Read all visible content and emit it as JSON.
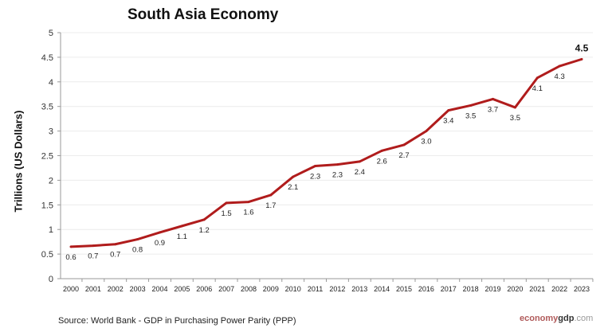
{
  "chart_data": {
    "type": "line",
    "title": "South Asia Economy",
    "xlabel": "",
    "ylabel": "Trillions (US Dollars)",
    "ylim": [
      0,
      5
    ],
    "yticks": [
      "0",
      "0.5",
      "1",
      "1.5",
      "2",
      "2.5",
      "3",
      "3.5",
      "4",
      "4.5",
      "5"
    ],
    "grid": true,
    "line_color": "#b01c1c",
    "x": [
      "2000",
      "2001",
      "2002",
      "2003",
      "2004",
      "2005",
      "2006",
      "2007",
      "2008",
      "2009",
      "2010",
      "2011",
      "2012",
      "2013",
      "2014",
      "2015",
      "2016",
      "2017",
      "2018",
      "2019",
      "2020",
      "2021",
      "2022",
      "2023"
    ],
    "series": [
      {
        "values": [
          0.65,
          0.67,
          0.7,
          0.8,
          0.94,
          1.07,
          1.2,
          1.54,
          1.56,
          1.7,
          2.07,
          2.29,
          2.32,
          2.38,
          2.6,
          2.72,
          3.0,
          3.42,
          3.52,
          3.65,
          3.48,
          4.08,
          4.32,
          4.46
        ],
        "labels": [
          "0.6",
          "0.7",
          "0.7",
          "0.8",
          "0.9",
          "1.1",
          "1.2",
          "1.5",
          "1.6",
          "1.7",
          "2.1",
          "2.3",
          "2.3",
          "2.4",
          "2.6",
          "2.7",
          "3.0",
          "3.4",
          "3.5",
          "3.7",
          "3.5",
          "4.1",
          "4.3",
          "4.5"
        ]
      }
    ]
  },
  "footer": {
    "source": "Source:  World Bank -  GDP  in Purchasing Power Parity (PPP)",
    "logo_part1": "economy",
    "logo_part2": "gdp",
    "logo_part3": ".com"
  }
}
